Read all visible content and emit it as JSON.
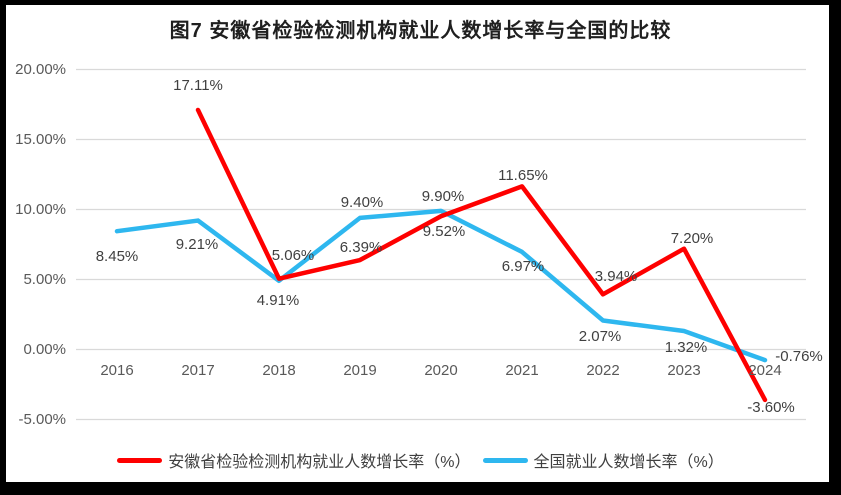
{
  "title": "图7  安徽省检验检测机构就业人数增长率与全国的比较",
  "chart_data": {
    "type": "line",
    "title": "图7  安徽省检验检测机构就业人数增长率与全国的比较",
    "categories": [
      "2016",
      "2017",
      "2018",
      "2019",
      "2020",
      "2021",
      "2022",
      "2023",
      "2024"
    ],
    "series": [
      {
        "name": "安徽省检验检测机构就业人数增长率（%）",
        "color": "#fe0000",
        "values": [
          null,
          17.11,
          5.06,
          6.39,
          9.52,
          11.65,
          3.94,
          7.2,
          -3.6
        ],
        "point_labels": [
          null,
          "17.11%",
          "5.06%",
          "6.39%",
          "9.52%",
          "11.65%",
          "3.94%",
          "7.20%",
          "-3.60%"
        ],
        "label_offsets": [
          null,
          [
            0,
            -24
          ],
          [
            14,
            -23
          ],
          [
            1,
            -12
          ],
          [
            3,
            16
          ],
          [
            1,
            -10
          ],
          [
            13,
            -17
          ],
          [
            8,
            -10
          ],
          [
            6,
            8
          ]
        ]
      },
      {
        "name": "全国就业人数增长率（%）",
        "color": "#2eb7ef",
        "values": [
          8.45,
          9.21,
          4.91,
          9.4,
          9.9,
          6.97,
          2.07,
          1.32,
          -0.76
        ],
        "point_labels": [
          "8.45%",
          "9.21%",
          "4.91%",
          "9.40%",
          "9.90%",
          "6.97%",
          "2.07%",
          "1.32%",
          "-0.76%"
        ],
        "label_offsets": [
          [
            0,
            26
          ],
          [
            -1,
            24
          ],
          [
            -1,
            20
          ],
          [
            2,
            -15
          ],
          [
            2,
            -14
          ],
          [
            1,
            15
          ],
          [
            -3,
            16
          ],
          [
            2,
            17
          ],
          [
            34,
            -3
          ]
        ]
      }
    ],
    "y_ticks": [
      {
        "value": 20,
        "label": "20.00%"
      },
      {
        "value": 15,
        "label": "15.00%"
      },
      {
        "value": 10,
        "label": "10.00%"
      },
      {
        "value": 5,
        "label": "5.00%"
      },
      {
        "value": 0,
        "label": "0.00%"
      },
      {
        "value": -5,
        "label": "-5.00%"
      }
    ],
    "ylim": [
      -5,
      20
    ],
    "grid": true,
    "legend_position": "bottom",
    "colors": {
      "grid": "#d9d9d9",
      "axis_text": "#595959",
      "data_label": "#404040",
      "series_anhui": "#fe0000",
      "series_national": "#2eb7ef"
    }
  },
  "legend": {
    "items": [
      {
        "label": "安徽省检验检测机构就业人数增长率（%）",
        "color": "#fe0000"
      },
      {
        "label": "全国就业人数增长率（%）",
        "color": "#2eb7ef"
      }
    ]
  }
}
